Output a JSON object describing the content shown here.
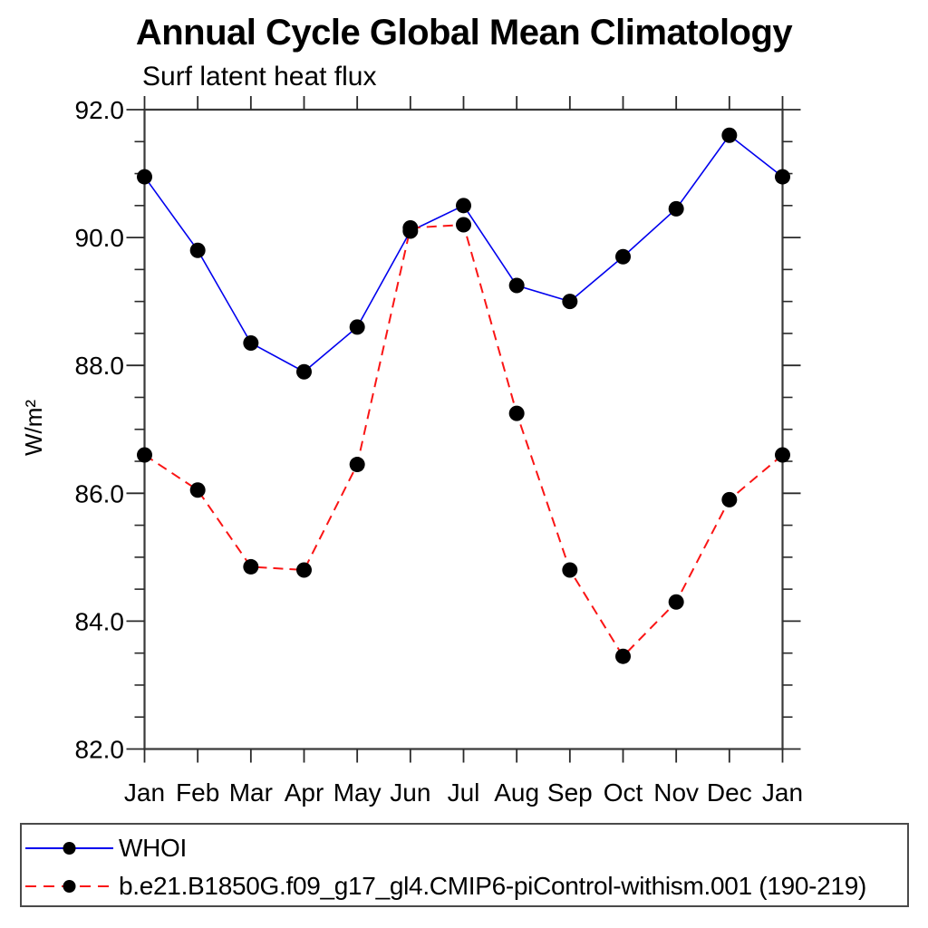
{
  "page": {
    "background": "#ffffff"
  },
  "chart_data": {
    "type": "line",
    "title": "Annual Cycle Global Mean Climatology",
    "subtitle": "Surf latent heat flux",
    "ylabel": "W/m²",
    "xlabel": "",
    "categories": [
      "Jan",
      "Feb",
      "Mar",
      "Apr",
      "May",
      "Jun",
      "Jul",
      "Aug",
      "Sep",
      "Oct",
      "Nov",
      "Dec",
      "Jan"
    ],
    "ylim": [
      82.0,
      92.0
    ],
    "y_major_ticks": [
      92.0,
      90.0,
      88.0,
      86.0,
      84.0,
      82.0
    ],
    "y_tick_labels": [
      "92.0",
      "90.0",
      "88.0",
      "86.0",
      "84.0",
      "82.0"
    ],
    "y_minor_step": 0.5,
    "grid": "off",
    "legend_position": "bottom-left-box",
    "axis_color": "#3a3a3a",
    "text_color": "#000000",
    "series": [
      {
        "name": "WHOI",
        "color": "#0000ee",
        "line_style": "solid",
        "marker": "filled-circle",
        "marker_color": "#000000",
        "values": [
          90.95,
          89.8,
          88.35,
          87.9,
          88.6,
          90.1,
          90.5,
          89.25,
          89.0,
          89.7,
          90.45,
          91.6,
          90.95
        ]
      },
      {
        "name": "b.e21.B1850G.f09_g17_gl4.CMIP6-piControl-withism.001 (190-219)",
        "color": "#fa1515",
        "line_style": "dashed",
        "marker": "filled-circle",
        "marker_color": "#000000",
        "values": [
          86.6,
          86.05,
          84.85,
          84.8,
          86.45,
          90.15,
          90.2,
          87.25,
          84.8,
          83.45,
          84.3,
          85.9,
          86.6
        ]
      }
    ]
  }
}
